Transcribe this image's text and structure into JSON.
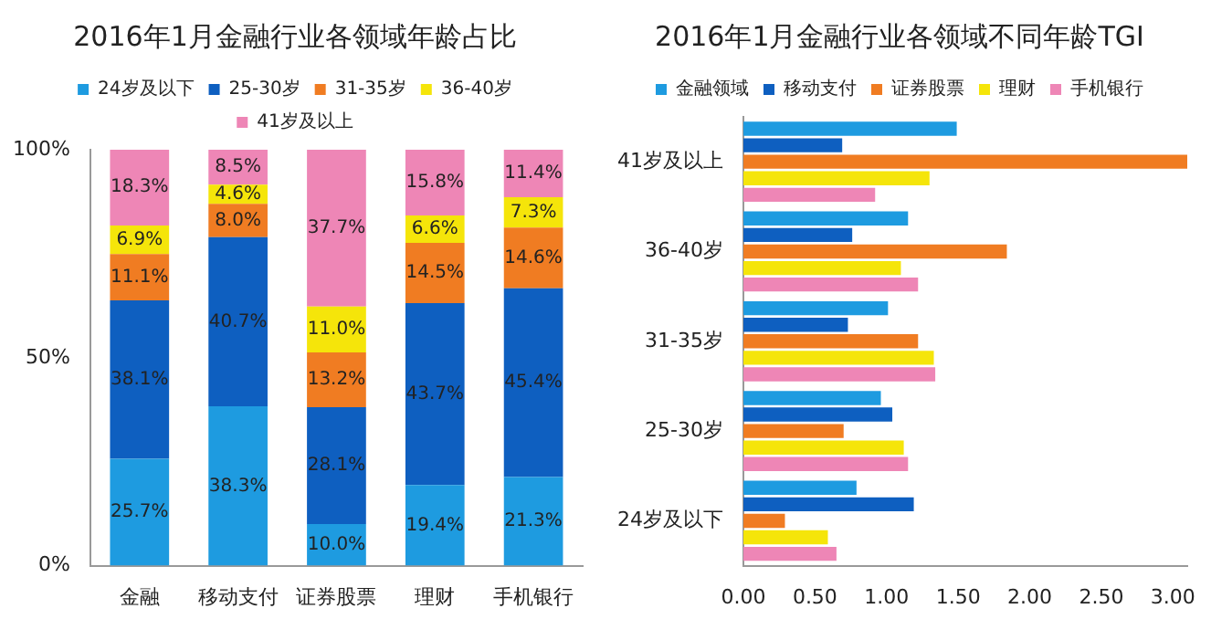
{
  "chart_data": [
    {
      "type": "bar",
      "title": "2016年1月金融行业各领域年龄占比",
      "categories": [
        "金融",
        "移动支付",
        "证券股票",
        "理财",
        "手机银行"
      ],
      "stacked": true,
      "ylim": [
        0,
        100
      ],
      "yticks": [
        {
          "value": 0,
          "label": "0%"
        },
        {
          "value": 50,
          "label": "50%"
        },
        {
          "value": 100,
          "label": "100%"
        }
      ],
      "grid": false,
      "legend": "top",
      "series": [
        {
          "name": "24岁及以下",
          "color": "#1e9be0",
          "values": [
            25.7,
            38.3,
            10.0,
            19.4,
            21.3
          ],
          "value_labels": [
            "25.7%",
            "38.3%",
            "10.0%",
            "19.4%",
            "21.3%"
          ]
        },
        {
          "name": "25-30岁",
          "color": "#0e5fc0",
          "values": [
            38.1,
            40.7,
            28.1,
            43.7,
            45.4
          ],
          "value_labels": [
            "38.1%",
            "40.7%",
            "28.1%",
            "43.7%",
            "45.4%"
          ]
        },
        {
          "name": "31-35岁",
          "color": "#f07c22",
          "values": [
            11.1,
            8.0,
            13.2,
            14.5,
            14.6
          ],
          "value_labels": [
            "11.1%",
            "8.0%",
            "13.2%",
            "14.5%",
            "14.6%"
          ]
        },
        {
          "name": "36-40岁",
          "color": "#f5e50a",
          "values": [
            6.9,
            4.6,
            11.0,
            6.6,
            7.3
          ],
          "value_labels": [
            "6.9%",
            "4.6%",
            "11.0%",
            "6.6%",
            "7.3%"
          ]
        },
        {
          "name": "41岁及以上",
          "color": "#ee86b6",
          "values": [
            18.3,
            8.5,
            37.7,
            15.8,
            11.4
          ],
          "value_labels": [
            "18.3%",
            "8.5%",
            "37.7%",
            "15.8%",
            "11.4%"
          ]
        }
      ]
    },
    {
      "type": "bar",
      "title": "2016年1月金融行业各领域不同年龄TGI",
      "orientation": "horizontal",
      "categories": [
        "41岁及以上",
        "36-40岁",
        "31-35岁",
        "25-30岁",
        "24岁及以下"
      ],
      "xlim": [
        0,
        3.1
      ],
      "xticks": [
        {
          "value": 0,
          "label": "0.00"
        },
        {
          "value": 0.5,
          "label": "0.50"
        },
        {
          "value": 1,
          "label": "1.00"
        },
        {
          "value": 1.5,
          "label": "1.50"
        },
        {
          "value": 2,
          "label": "2.00"
        },
        {
          "value": 2.5,
          "label": "2.50"
        },
        {
          "value": 3,
          "label": "3.00"
        }
      ],
      "grid": false,
      "legend": "top",
      "series": [
        {
          "name": "金融领域",
          "color": "#1e9be0",
          "values": [
            1.49,
            1.15,
            1.01,
            0.96,
            0.79
          ]
        },
        {
          "name": "移动支付",
          "color": "#0e5fc0",
          "values": [
            0.69,
            0.76,
            0.73,
            1.04,
            1.19
          ]
        },
        {
          "name": "证券股票",
          "color": "#f07c22",
          "values": [
            3.1,
            1.84,
            1.22,
            0.7,
            0.29
          ]
        },
        {
          "name": "理财",
          "color": "#f5e50a",
          "values": [
            1.3,
            1.1,
            1.33,
            1.12,
            0.59
          ]
        },
        {
          "name": "手机银行",
          "color": "#ee86b6",
          "values": [
            0.92,
            1.22,
            1.34,
            1.15,
            0.65
          ]
        }
      ]
    }
  ]
}
